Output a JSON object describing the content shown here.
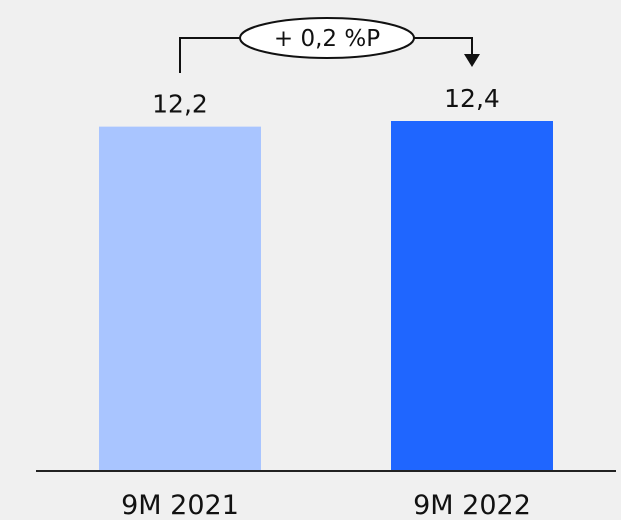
{
  "chart_data": {
    "type": "bar",
    "categories": [
      "9M 2021",
      "9M 2022"
    ],
    "values": [
      12.2,
      12.4
    ],
    "value_labels": [
      "12,2",
      "12,4"
    ],
    "bar_colors": [
      "#a9c5ff",
      "#1f66ff"
    ],
    "ylim": [
      0,
      12.4
    ],
    "grid": false,
    "annotation": {
      "text": "+ 0,2 %P",
      "from": "9M 2021",
      "to": "9M 2022"
    }
  },
  "colors": {
    "background": "#f0f0f0",
    "axis": "#222222",
    "text": "#111111"
  }
}
